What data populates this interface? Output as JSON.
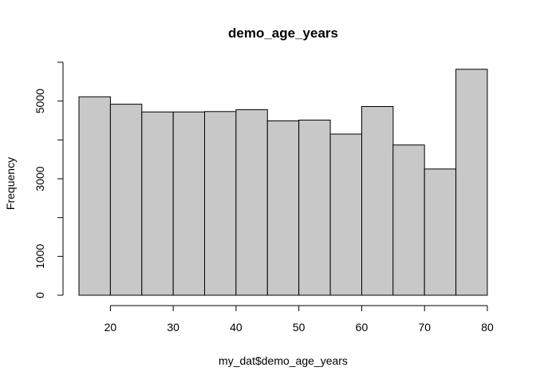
{
  "chart_data": {
    "type": "bar",
    "title": "demo_age_years",
    "xlabel": "my_dat$demo_age_years",
    "ylabel": "Frequency",
    "bin_edges": [
      15,
      20,
      25,
      30,
      35,
      40,
      45,
      50,
      55,
      60,
      65,
      70,
      75,
      80
    ],
    "values": [
      5110,
      4920,
      4720,
      4720,
      4730,
      4780,
      4490,
      4510,
      4150,
      4860,
      3870,
      3250,
      5820
    ],
    "xticks": [
      20,
      30,
      40,
      50,
      60,
      70,
      80
    ],
    "yticks": [
      0,
      1000,
      3000,
      5000
    ],
    "yticks_minor": [
      2000,
      4000,
      6000
    ],
    "xlim": [
      15,
      80
    ],
    "ylim": [
      0,
      6000
    ],
    "grid": false,
    "bar_color": "#c8c8c8"
  }
}
